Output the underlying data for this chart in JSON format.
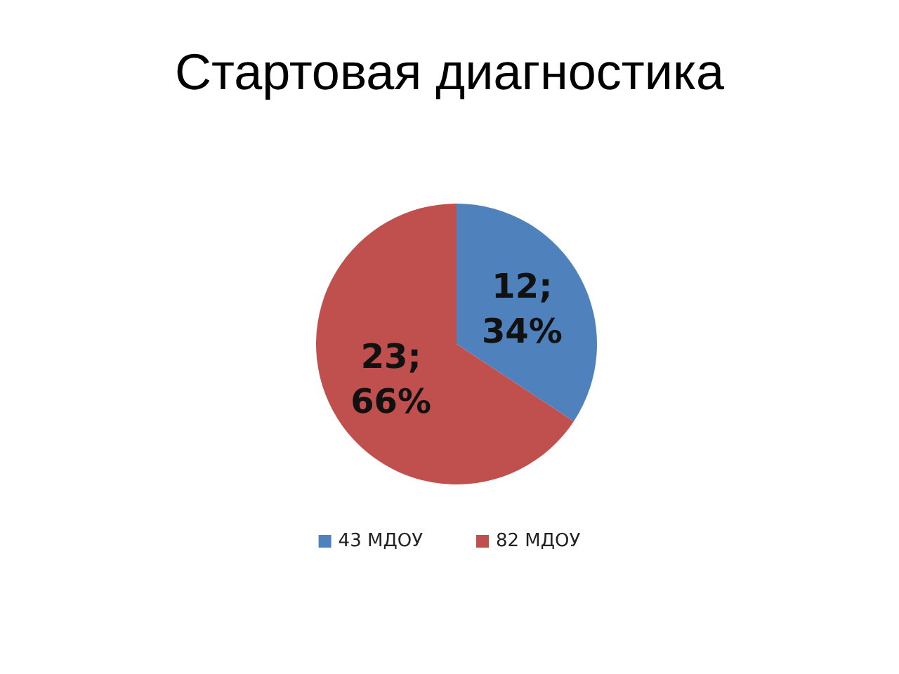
{
  "chart_data": {
    "type": "pie",
    "title": "Стартовая диагностика",
    "categories": [
      "43 МДОУ",
      "82 МДОУ"
    ],
    "values": [
      12,
      23
    ],
    "colors": [
      "#4f81bd",
      "#c0504d"
    ],
    "value_labels": [
      "12;\n34%",
      "23;\n66%"
    ],
    "legend": "bottom"
  }
}
